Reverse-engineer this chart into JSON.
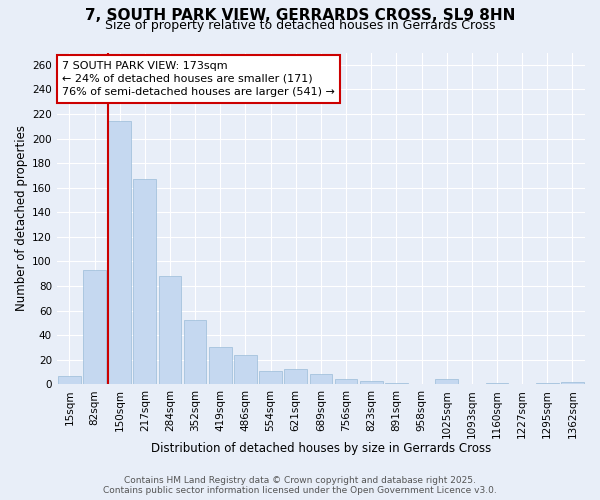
{
  "title1": "7, SOUTH PARK VIEW, GERRARDS CROSS, SL9 8HN",
  "title2": "Size of property relative to detached houses in Gerrards Cross",
  "xlabel": "Distribution of detached houses by size in Gerrards Cross",
  "ylabel": "Number of detached properties",
  "categories": [
    "15sqm",
    "82sqm",
    "150sqm",
    "217sqm",
    "284sqm",
    "352sqm",
    "419sqm",
    "486sqm",
    "554sqm",
    "621sqm",
    "689sqm",
    "756sqm",
    "823sqm",
    "891sqm",
    "958sqm",
    "1025sqm",
    "1093sqm",
    "1160sqm",
    "1227sqm",
    "1295sqm",
    "1362sqm"
  ],
  "values": [
    7,
    93,
    214,
    167,
    88,
    52,
    30,
    24,
    11,
    12,
    8,
    4,
    3,
    1,
    0,
    4,
    0,
    1,
    0,
    1,
    2
  ],
  "bar_color": "#c5d8f0",
  "bar_edge_color": "#9bbcd8",
  "red_line_index": 2,
  "annotation_title": "7 SOUTH PARK VIEW: 173sqm",
  "annotation_line1": "← 24% of detached houses are smaller (171)",
  "annotation_line2": "76% of semi-detached houses are larger (541) →",
  "annotation_box_color": "#ffffff",
  "annotation_box_edge": "#cc0000",
  "red_line_color": "#cc0000",
  "ylim": [
    0,
    270
  ],
  "yticks": [
    0,
    20,
    40,
    60,
    80,
    100,
    120,
    140,
    160,
    180,
    200,
    220,
    240,
    260
  ],
  "footer1": "Contains HM Land Registry data © Crown copyright and database right 2025.",
  "footer2": "Contains public sector information licensed under the Open Government Licence v3.0.",
  "bg_color": "#e8eef8",
  "grid_color": "#ffffff",
  "title1_fontsize": 11,
  "title2_fontsize": 9,
  "tick_fontsize": 7.5,
  "label_fontsize": 8.5,
  "annotation_fontsize": 8,
  "footer_fontsize": 6.5
}
